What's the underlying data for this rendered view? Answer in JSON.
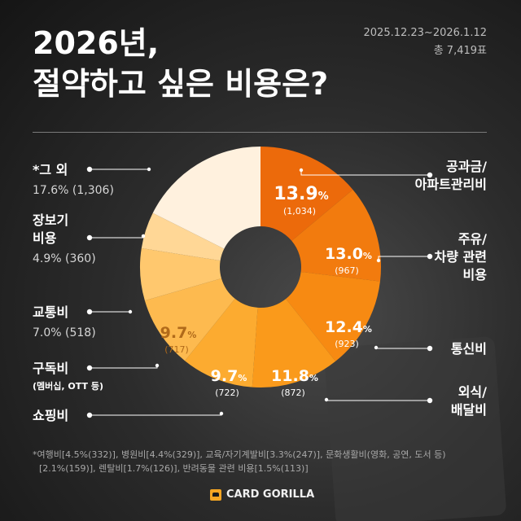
{
  "header": {
    "title_line1": "2026년,",
    "title_line2": "절약하고 싶은 비용은?",
    "period": "2025.12.23~2026.1.12",
    "votes": "총 7,419표"
  },
  "colors": {
    "slice_shades": [
      "#EC6A0B",
      "#F27B0E",
      "#F78A12",
      "#FA9A1B",
      "#FCAB30",
      "#FDBA4F",
      "#FFC86E",
      "#FFD796",
      "#FFF1DE"
    ],
    "leader": "#ffffff"
  },
  "chart_data": {
    "type": "pie",
    "variant": "donut",
    "slices": [
      {
        "label_lines": [
          "공과금/",
          "아파트관리비"
        ],
        "percent": 13.9,
        "pct_text": "13.9",
        "count_text": "(1,034)",
        "label_side": "right"
      },
      {
        "label_lines": [
          "주유/",
          "차량 관련",
          "비용"
        ],
        "percent": 13.0,
        "pct_text": "13.0",
        "count_text": "(967)",
        "label_side": "right"
      },
      {
        "label_lines": [
          "통신비"
        ],
        "percent": 12.4,
        "pct_text": "12.4",
        "count_text": "(923)",
        "label_side": "right"
      },
      {
        "label_lines": [
          "외식/",
          "배달비"
        ],
        "percent": 11.8,
        "pct_text": "11.8",
        "count_text": "(872)",
        "label_side": "right"
      },
      {
        "label_lines": [
          "쇼핑비"
        ],
        "percent": 9.7,
        "pct_text": "9.7",
        "count_text": "(722)",
        "label_side": "left"
      },
      {
        "label_lines": [
          "구독비"
        ],
        "sublabel": "(멤버십, OTT 등)",
        "percent": 9.7,
        "pct_text": "9.7",
        "count_text": "(717)",
        "label_side": "left"
      },
      {
        "label_lines": [
          "교통비"
        ],
        "percent": 7.0,
        "outside_value": "7.0% (518)",
        "label_side": "left"
      },
      {
        "label_lines": [
          "장보기",
          "비용"
        ],
        "percent": 4.9,
        "outside_value": "4.9% (360)",
        "label_side": "left"
      },
      {
        "label_lines": [
          "*그 외"
        ],
        "percent": 17.6,
        "outside_value": "17.6% (1,306)",
        "label_side": "left"
      }
    ]
  },
  "footnote": {
    "line1": "*여행비[4.5%(332)], 병원비[4.4%(329)], 교육/자기계발비[3.3%(247)], 문화생활비(영화, 공연, 도서 등)",
    "line2": "[2.1%(159)], 렌탈비[1.7%(126)], 반려동물 관련 비용[1.5%(113)]"
  },
  "brand": {
    "name": "CARD GORILLA"
  }
}
